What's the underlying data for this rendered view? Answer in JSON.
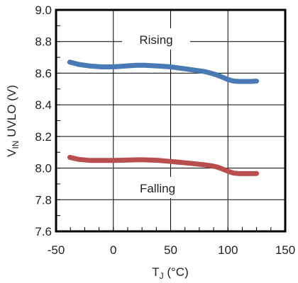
{
  "chart_data": {
    "type": "line",
    "xlabel_main": "T",
    "xlabel_sub": "J",
    "xlabel_unit": " (°C)",
    "ylabel_main": "V",
    "ylabel_sub": "IN",
    "ylabel_rest": " UVLO (V)",
    "xlim": [
      -50,
      150
    ],
    "ylim": [
      7.6,
      9.0
    ],
    "x_ticks": [
      -50,
      0,
      50,
      100,
      150
    ],
    "x_tick_labels": [
      "-50",
      "0",
      "50",
      "100",
      "150"
    ],
    "y_ticks": [
      7.6,
      7.8,
      8.0,
      8.2,
      8.4,
      8.6,
      8.8,
      9.0
    ],
    "y_tick_labels": [
      "7.6",
      "7.8",
      "8.0",
      "8.2",
      "8.4",
      "8.6",
      "8.8",
      "9.0"
    ],
    "grid": true,
    "series": [
      {
        "name": "Rising",
        "color": "#4a7ab5",
        "x": [
          -38,
          -30,
          -20,
          -10,
          0,
          10,
          20,
          27,
          40,
          50,
          60,
          70,
          80,
          85,
          90,
          95,
          100,
          105,
          110,
          115,
          120,
          125
        ],
        "y": [
          8.67,
          8.655,
          8.645,
          8.64,
          8.64,
          8.645,
          8.65,
          8.65,
          8.645,
          8.64,
          8.63,
          8.62,
          8.61,
          8.6,
          8.59,
          8.575,
          8.56,
          8.55,
          8.548,
          8.548,
          8.548,
          8.55
        ]
      },
      {
        "name": "Falling",
        "color": "#b94e4e",
        "x": [
          -38,
          -30,
          -20,
          -10,
          0,
          10,
          20,
          27,
          40,
          50,
          60,
          70,
          80,
          85,
          90,
          95,
          100,
          105,
          110,
          115,
          120,
          125
        ],
        "y": [
          8.068,
          8.055,
          8.048,
          8.048,
          8.048,
          8.05,
          8.052,
          8.052,
          8.048,
          8.042,
          8.035,
          8.028,
          8.02,
          8.015,
          8.008,
          7.995,
          7.98,
          7.968,
          7.965,
          7.965,
          7.965,
          7.966
        ]
      }
    ]
  }
}
